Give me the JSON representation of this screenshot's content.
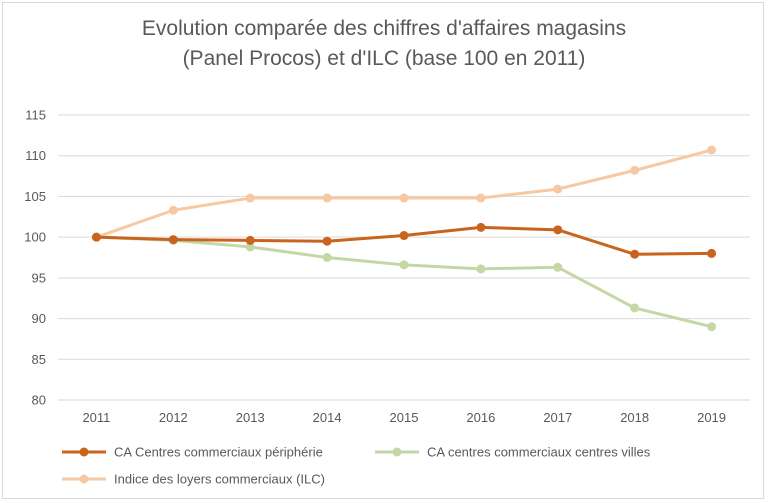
{
  "chart_data": {
    "type": "line",
    "title_lines": [
      "Evolution comparée des chiffres d'affaires magasins",
      "(Panel Procos) et d'ILC (base 100 en 2011)"
    ],
    "categories": [
      "2011",
      "2012",
      "2013",
      "2014",
      "2015",
      "2016",
      "2017",
      "2018",
      "2019"
    ],
    "ylim": [
      80,
      115
    ],
    "yticks": [
      80,
      85,
      90,
      95,
      100,
      105,
      110,
      115
    ],
    "grid": true,
    "legend_position": "bottom",
    "series": [
      {
        "name": "CA Centres commerciaux périphérie",
        "color": "#c9641e",
        "values": [
          100,
          99.7,
          99.6,
          99.5,
          100.2,
          101.2,
          100.9,
          97.9,
          98.0
        ]
      },
      {
        "name": "CA centres commerciaux centres villes",
        "color": "#c5d7a6",
        "values": [
          100,
          99.6,
          98.8,
          97.5,
          96.6,
          96.1,
          96.3,
          91.3,
          89.0
        ]
      },
      {
        "name": "Indice des loyers commerciaux (ILC)",
        "color": "#f6c9a2",
        "values": [
          100,
          103.3,
          104.8,
          104.8,
          104.8,
          104.8,
          105.9,
          108.2,
          110.7
        ]
      }
    ]
  }
}
